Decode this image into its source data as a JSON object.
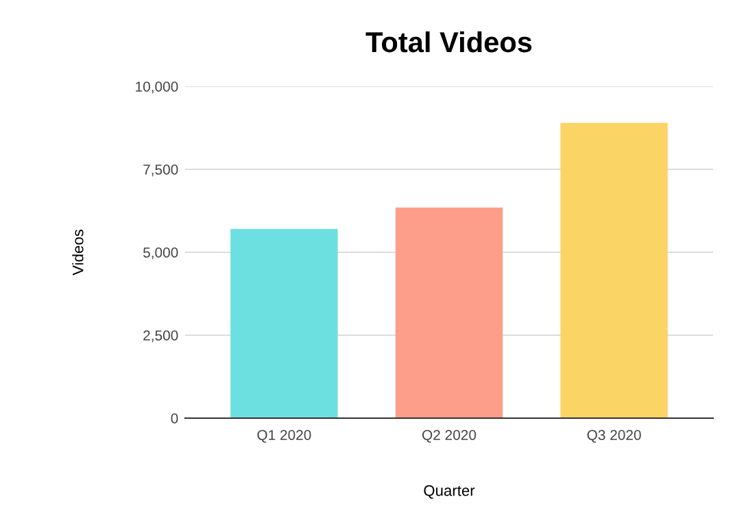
{
  "chart_data": {
    "type": "bar",
    "title": "Total Videos",
    "xlabel": "Quarter",
    "ylabel": "Videos",
    "categories": [
      "Q1 2020",
      "Q2 2020",
      "Q3 2020"
    ],
    "values": [
      5700,
      6350,
      8900
    ],
    "colors": [
      "#6ce0e0",
      "#fc9e8a",
      "#fbd466"
    ],
    "ylim": [
      0,
      10000
    ],
    "yticks": [
      {
        "value": 0,
        "label": "0"
      },
      {
        "value": 2500,
        "label": "2,500"
      },
      {
        "value": 5000,
        "label": "5,000"
      },
      {
        "value": 7500,
        "label": "7,500"
      },
      {
        "value": 10000,
        "label": "10,000"
      }
    ],
    "grid": "y",
    "legend": false
  }
}
